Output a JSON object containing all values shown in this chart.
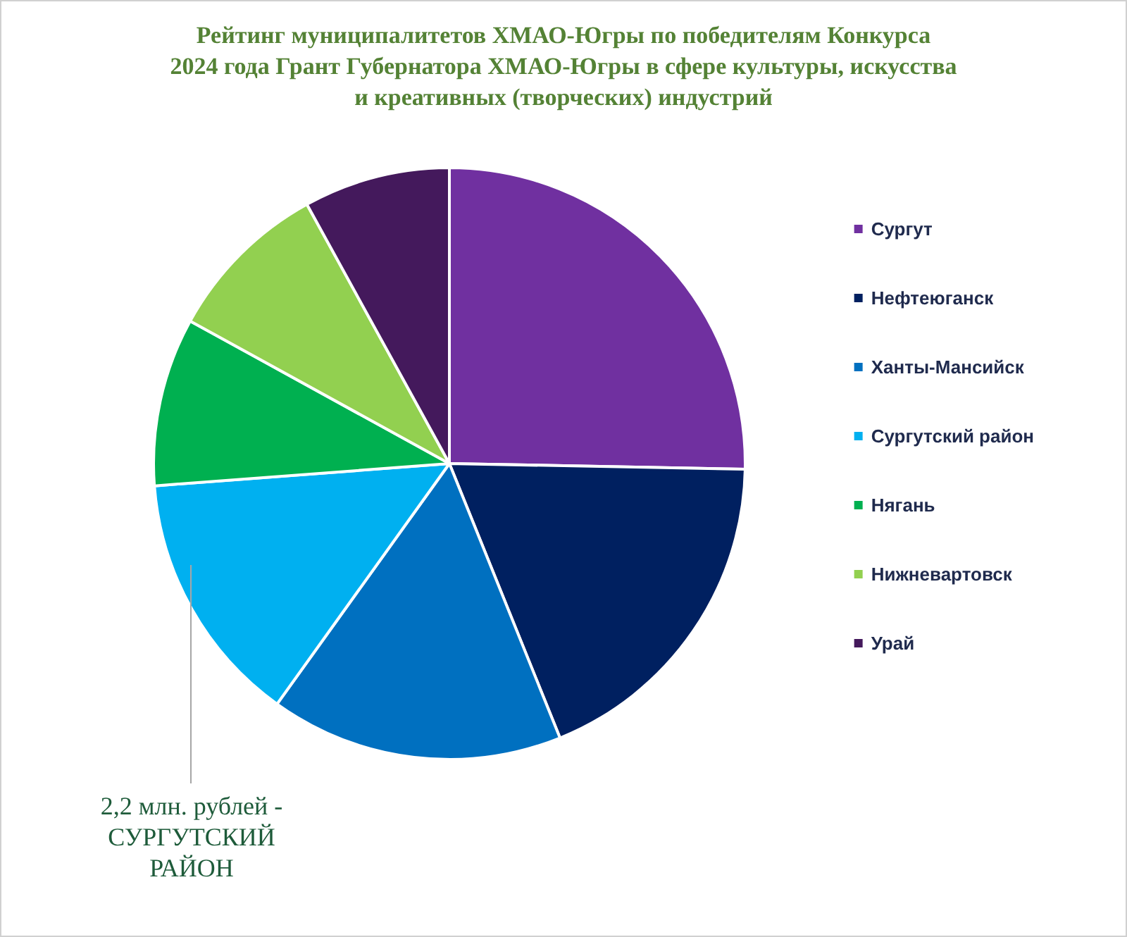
{
  "chart_data": {
    "type": "pie",
    "title": "Рейтинг муниципалитетов ХМАО-Югры по победителям Конкурса\n2024 года Грант Губернатора ХМАО-Югры в сфере культуры, искусства\nи креативных (творческих) индустрий",
    "categories": [
      "Сургут",
      "Нефтеюганск",
      "Ханты-Мансийск",
      "Сургутский район",
      "Нягань",
      "Нижневартовск",
      "Урай"
    ],
    "values": [
      25.3,
      18.6,
      16,
      13.9,
      9.2,
      9,
      8
    ],
    "colors": [
      "#7030a0",
      "#002060",
      "#0070c0",
      "#00b0f0",
      "#00b050",
      "#92d050",
      "#44195c"
    ],
    "legend": "right",
    "annotations": [
      "2,2 млн. рублей -\nСУРГУТСКИЙ\nРАЙОН"
    ]
  }
}
